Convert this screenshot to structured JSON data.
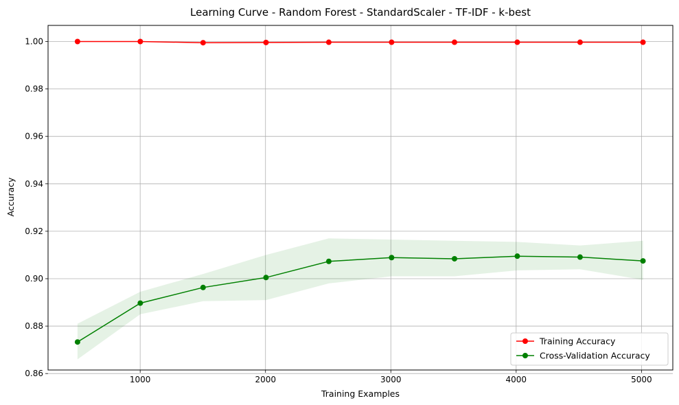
{
  "chart_data": {
    "type": "line",
    "title": "Learning Curve - Random Forest - StandardScaler - TF-IDF - k-best",
    "xlabel": "Training Examples",
    "ylabel": "Accuracy",
    "xlim": [
      265,
      5250
    ],
    "ylim": [
      0.8615,
      1.0068
    ],
    "xticks": [
      1000,
      2000,
      3000,
      4000,
      5000
    ],
    "yticks": [
      0.86,
      0.88,
      0.9,
      0.92,
      0.94,
      0.96,
      0.98,
      1.0
    ],
    "ytick_labels": [
      "0.86",
      "0.88",
      "0.90",
      "0.92",
      "0.94",
      "0.96",
      "0.98",
      "1.00"
    ],
    "grid": true,
    "legend_position": "lower-right",
    "x": [
      500,
      1001,
      1502,
      2004,
      2505,
      3006,
      3508,
      4009,
      4510,
      5012
    ],
    "series": [
      {
        "name": "Training Accuracy",
        "color": "#ff0000",
        "marker": "circle",
        "values": [
          1.0,
          1.0,
          0.9995,
          0.9996,
          0.9997,
          0.9997,
          0.9997,
          0.9997,
          0.9997,
          0.9997
        ],
        "band_lower": [
          1.0,
          1.0,
          0.9993,
          0.9994,
          0.9995,
          0.9995,
          0.9996,
          0.9996,
          0.9996,
          0.9996
        ],
        "band_upper": [
          1.0,
          1.0,
          0.9997,
          0.9998,
          0.9999,
          0.9999,
          0.9998,
          0.9998,
          0.9998,
          0.9998
        ]
      },
      {
        "name": "Cross-Validation Accuracy",
        "color": "#008000",
        "marker": "circle",
        "values": [
          0.8733,
          0.8897,
          0.8963,
          0.9005,
          0.9073,
          0.9089,
          0.9084,
          0.9095,
          0.9091,
          0.9075
        ],
        "band_lower": [
          0.866,
          0.885,
          0.8905,
          0.891,
          0.898,
          0.901,
          0.901,
          0.9035,
          0.904,
          0.8995
        ],
        "band_upper": [
          0.881,
          0.8945,
          0.902,
          0.91,
          0.917,
          0.9165,
          0.916,
          0.9155,
          0.914,
          0.916
        ]
      }
    ]
  }
}
